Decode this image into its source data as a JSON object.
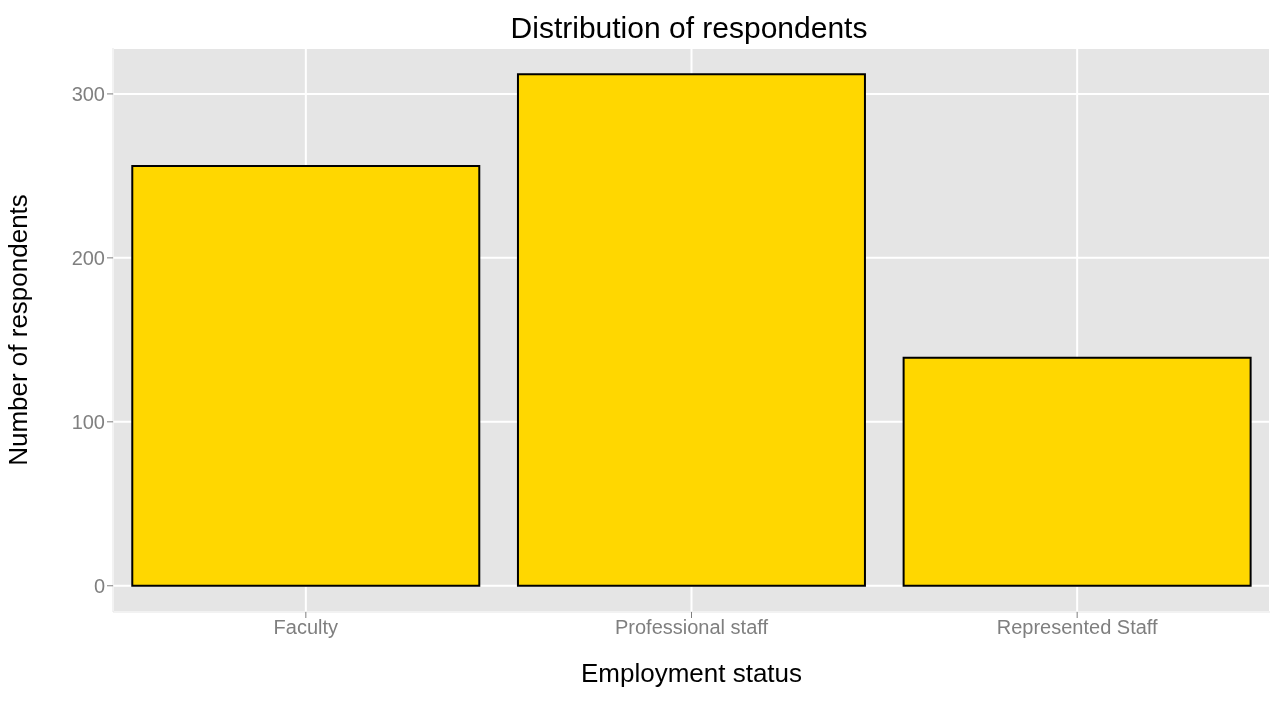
{
  "chart_data": {
    "type": "bar",
    "title": "Distribution of respondents",
    "xlabel": "Employment status",
    "ylabel": "Number of respondents",
    "categories": [
      "Faculty",
      "Professional staff",
      "Represented Staff"
    ],
    "values": [
      256,
      312,
      139
    ],
    "color": "#ffd700",
    "ylim": [
      -16,
      328
    ],
    "yticks": [
      0,
      100,
      200,
      300
    ],
    "grid": true
  }
}
